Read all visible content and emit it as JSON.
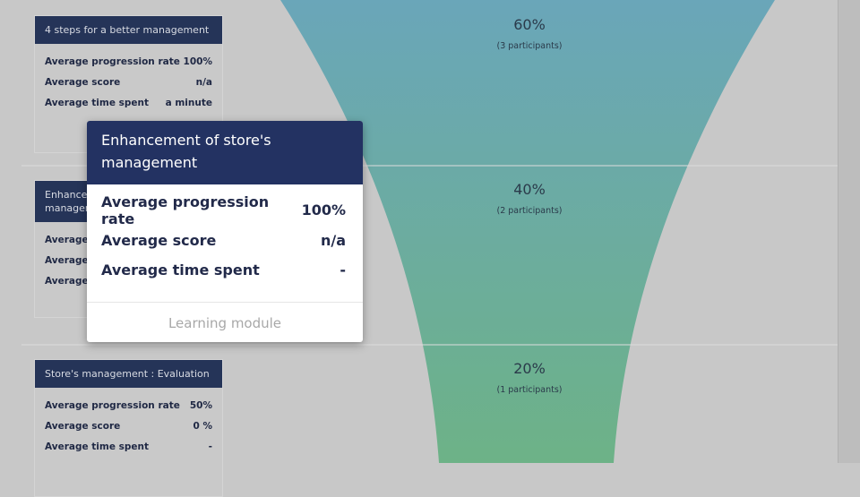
{
  "steps": [
    {
      "title": "4 steps for a better management",
      "metrics": [
        {
          "label": "Average progression rate",
          "value": "100%"
        },
        {
          "label": "Average score",
          "value": "n/a"
        },
        {
          "label": "Average time spent",
          "value": "a minute"
        }
      ],
      "funnel": {
        "percent": "60%",
        "participants": "(3 participants)"
      }
    },
    {
      "title": "Enhancement of store's management",
      "metrics": [
        {
          "label": "Average progression rate"
        },
        {
          "label": "Average score"
        },
        {
          "label": "Average time spent"
        }
      ],
      "funnel": {
        "percent": "40%",
        "participants": "(2 participants)"
      }
    },
    {
      "title": "Store's management : Evaluation",
      "metrics": [
        {
          "label": "Average progression rate",
          "value": "50%"
        },
        {
          "label": "Average score",
          "value": "0 %"
        },
        {
          "label": "Average time spent",
          "value": "-"
        }
      ],
      "funnel": {
        "percent": "20%",
        "participants": "(1 participants)"
      }
    }
  ],
  "tooltip": {
    "title": "Enhancement of store's management",
    "metrics": [
      {
        "label": "Average progression rate",
        "value": "100%"
      },
      {
        "label": "Average score",
        "value": "n/a"
      },
      {
        "label": "Average time spent",
        "value": "-"
      }
    ],
    "footer": "Learning module"
  }
}
